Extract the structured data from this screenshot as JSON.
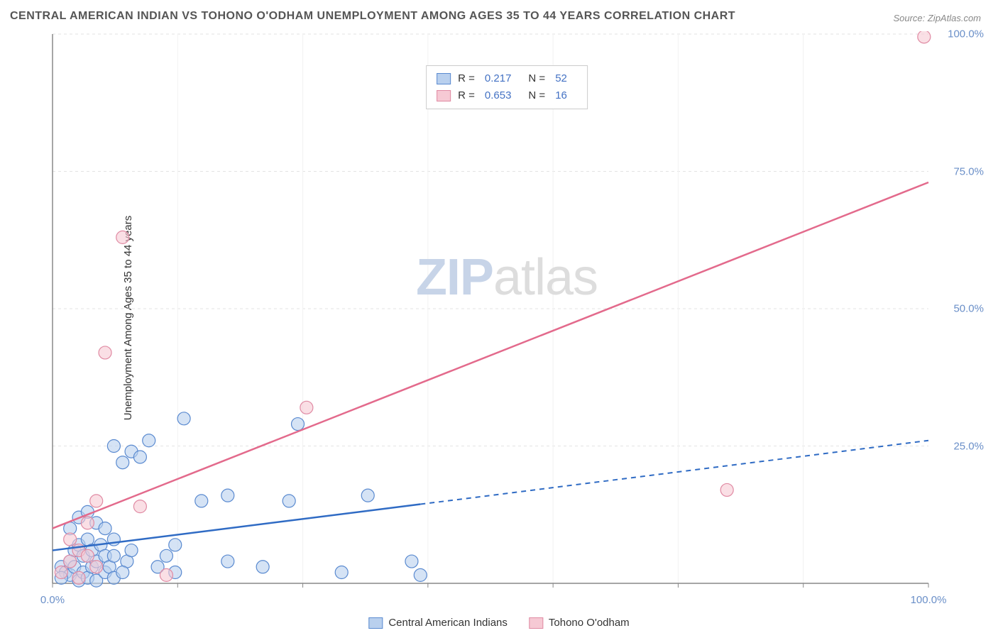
{
  "title": "CENTRAL AMERICAN INDIAN VS TOHONO O'ODHAM UNEMPLOYMENT AMONG AGES 35 TO 44 YEARS CORRELATION CHART",
  "source": "Source: ZipAtlas.com",
  "y_axis_label": "Unemployment Among Ages 35 to 44 years",
  "watermark_a": "ZIP",
  "watermark_b": "atlas",
  "chart": {
    "type": "scatter",
    "xlim": [
      0,
      100
    ],
    "ylim": [
      0,
      100
    ],
    "x_ticks": [
      0,
      100
    ],
    "x_tick_labels": [
      "0.0%",
      "100.0%"
    ],
    "y_ticks": [
      25,
      50,
      75,
      100
    ],
    "y_tick_labels": [
      "25.0%",
      "50.0%",
      "75.0%",
      "100.0%"
    ],
    "grid_color": "#e3e3e3",
    "axis_color": "#888888",
    "background_color": "#ffffff",
    "marker_radius": 9,
    "marker_stroke_width": 1.2,
    "series": [
      {
        "name": "Central American Indians",
        "color_fill": "#b9d0ee",
        "color_stroke": "#5a8ad0",
        "fill_opacity": 0.6,
        "R_label": "R  =",
        "R": "0.217",
        "N_label": "N  =",
        "N": "52",
        "trend": {
          "intercept": 6.0,
          "slope": 0.2,
          "solid_until_x": 42,
          "color": "#2f6bc4",
          "width": 2.5
        },
        "points": [
          [
            1,
            3
          ],
          [
            1.5,
            2
          ],
          [
            2,
            1.5
          ],
          [
            2,
            4
          ],
          [
            2.5,
            6
          ],
          [
            2.5,
            3
          ],
          [
            3,
            0.5
          ],
          [
            3,
            7
          ],
          [
            3.5,
            2
          ],
          [
            3.5,
            5
          ],
          [
            4,
            1
          ],
          [
            4,
            8
          ],
          [
            4.5,
            3
          ],
          [
            4.5,
            6
          ],
          [
            5,
            0.5
          ],
          [
            5,
            4
          ],
          [
            5.5,
            7
          ],
          [
            6,
            2
          ],
          [
            6,
            5
          ],
          [
            6.5,
            3
          ],
          [
            7,
            1
          ],
          [
            7,
            8
          ],
          [
            7,
            25
          ],
          [
            8,
            22
          ],
          [
            8.5,
            4
          ],
          [
            9,
            6
          ],
          [
            9,
            24
          ],
          [
            10,
            23
          ],
          [
            11,
            26
          ],
          [
            12,
            3
          ],
          [
            13,
            5
          ],
          [
            14,
            2
          ],
          [
            14,
            7
          ],
          [
            15,
            30
          ],
          [
            17,
            15
          ],
          [
            20,
            4
          ],
          [
            20,
            16
          ],
          [
            24,
            3
          ],
          [
            27,
            15
          ],
          [
            28,
            29
          ],
          [
            33,
            2
          ],
          [
            36,
            16
          ],
          [
            41,
            4
          ],
          [
            42,
            1.5
          ],
          [
            2,
            10
          ],
          [
            3,
            12
          ],
          [
            4,
            13
          ],
          [
            5,
            11
          ],
          [
            6,
            10
          ],
          [
            7,
            5
          ],
          [
            8,
            2
          ],
          [
            1,
            1
          ]
        ]
      },
      {
        "name": "Tohono O'odham",
        "color_fill": "#f6c9d4",
        "color_stroke": "#e08aa3",
        "fill_opacity": 0.6,
        "R_label": "R  =",
        "R": "0.653",
        "N_label": "N  =",
        "N": "16",
        "trend": {
          "intercept": 10.0,
          "slope": 0.63,
          "solid_until_x": 100,
          "color": "#e36a8c",
          "width": 2.5
        },
        "points": [
          [
            1,
            2
          ],
          [
            2,
            4
          ],
          [
            2,
            8
          ],
          [
            3,
            1
          ],
          [
            3,
            6
          ],
          [
            4,
            11
          ],
          [
            5,
            3
          ],
          [
            5,
            15
          ],
          [
            6,
            42
          ],
          [
            8,
            63
          ],
          [
            10,
            14
          ],
          [
            13,
            1.5
          ],
          [
            29,
            32
          ],
          [
            77,
            17
          ],
          [
            99.5,
            99.5
          ],
          [
            4,
            5
          ]
        ]
      }
    ]
  },
  "legend_bottom": [
    {
      "label": "Central American Indians",
      "fill": "#b9d0ee",
      "stroke": "#5a8ad0"
    },
    {
      "label": "Tohono O'odham",
      "fill": "#f6c9d4",
      "stroke": "#e08aa3"
    }
  ]
}
